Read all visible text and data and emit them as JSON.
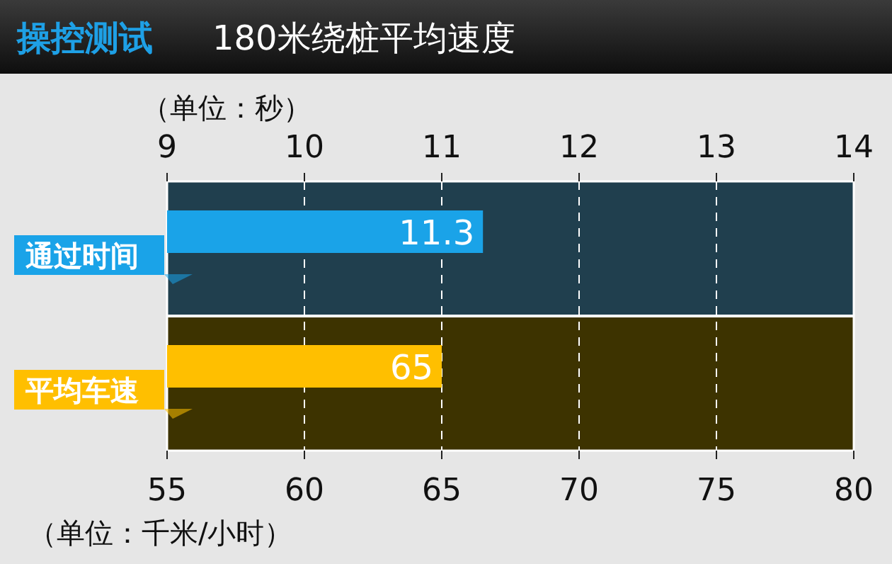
{
  "chart_data": {
    "type": "bar",
    "orientation": "horizontal",
    "title": "操控测试",
    "subtitle": "180米绕桩平均速度",
    "categories": [
      "通过时间",
      "平均车速"
    ],
    "series": [
      {
        "axis": "x2",
        "color": "#1aa3e8",
        "values": [
          11.3,
          null
        ]
      },
      {
        "color": "#ffbf00",
        "values": [
          null,
          65
        ]
      }
    ],
    "x2label": "（单位：秒）",
    "x2lim": [
      9,
      14
    ],
    "x2ticks": [
      9,
      10,
      11,
      12,
      13,
      14
    ],
    "xlabel": "（单位：千米/小时）",
    "xlim": [
      55,
      80
    ],
    "xticks": [
      55,
      60,
      65,
      70,
      75,
      80
    ],
    "grid": "x",
    "line_style": "dashed",
    "data_labels": true
  }
}
